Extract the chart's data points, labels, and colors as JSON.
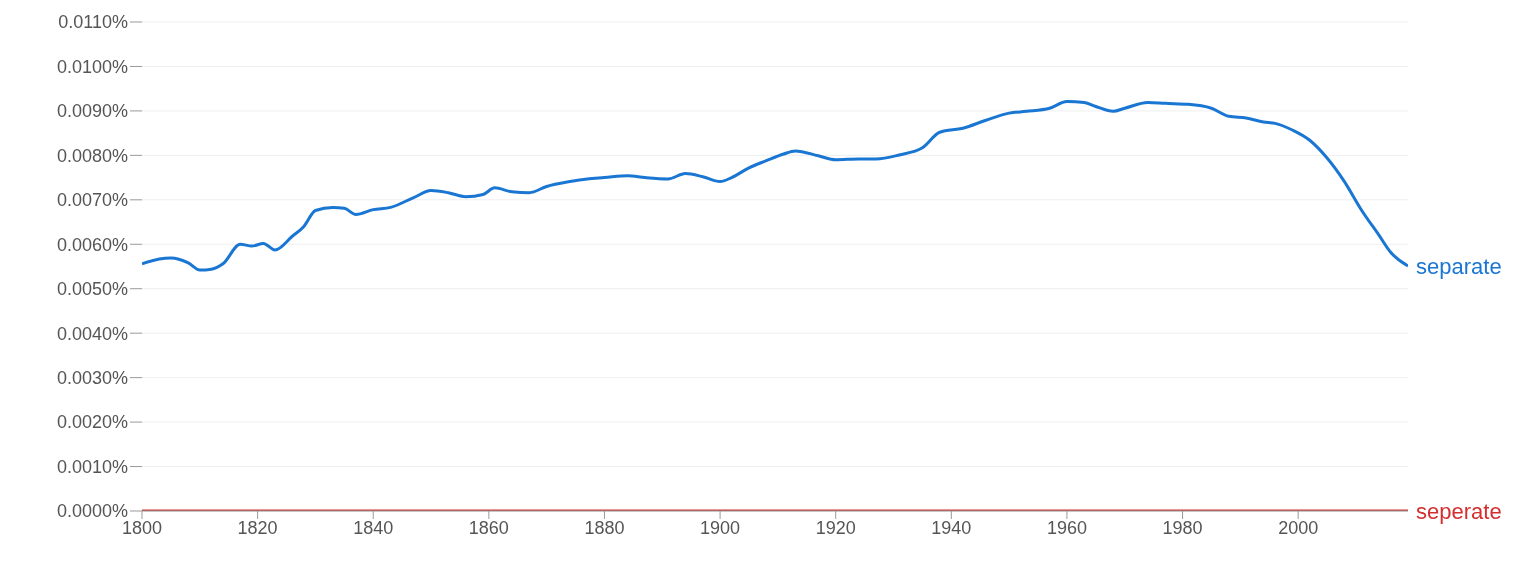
{
  "chart_data": {
    "type": "line",
    "xlim": [
      1800,
      2019
    ],
    "xticks": [
      1800,
      1820,
      1840,
      1860,
      1880,
      1900,
      1920,
      1940,
      1960,
      1980,
      2000
    ],
    "ylim": [
      0,
      0.011
    ],
    "yticks": [
      {
        "value": 0,
        "label": "0.0000%"
      },
      {
        "value": 0.001,
        "label": "0.0010%"
      },
      {
        "value": 0.002,
        "label": "0.0020%"
      },
      {
        "value": 0.003,
        "label": "0.0030%"
      },
      {
        "value": 0.004,
        "label": "0.0040%"
      },
      {
        "value": 0.005,
        "label": "0.0050%"
      },
      {
        "value": 0.006,
        "label": "0.0060%"
      },
      {
        "value": 0.007,
        "label": "0.0070%"
      },
      {
        "value": 0.008,
        "label": "0.0080%"
      },
      {
        "value": 0.009,
        "label": "0.0090%"
      },
      {
        "value": 0.01,
        "label": "0.0100%"
      },
      {
        "value": 0.011,
        "label": "0.0110%"
      }
    ],
    "grid": "y",
    "legend": false,
    "marker": "none",
    "line_style": "solid",
    "series": [
      {
        "name": "separate",
        "color": "#1976d2",
        "x": [
          1800,
          1803,
          1805,
          1808,
          1810,
          1812,
          1814,
          1817,
          1819,
          1821,
          1823,
          1826,
          1828,
          1830,
          1833,
          1835,
          1837,
          1840,
          1843,
          1847,
          1850,
          1853,
          1856,
          1859,
          1861,
          1864,
          1867,
          1870,
          1874,
          1877,
          1880,
          1884,
          1887,
          1891,
          1894,
          1897,
          1900,
          1902,
          1905,
          1908,
          1911,
          1913,
          1917,
          1920,
          1924,
          1927,
          1931,
          1935,
          1938,
          1942,
          1946,
          1950,
          1953,
          1957,
          1960,
          1963,
          1965,
          1968,
          1970,
          1974,
          1977,
          1981,
          1985,
          1988,
          1991,
          1994,
          1996,
          1999,
          2002,
          2005,
          2008,
          2011,
          2014,
          2016,
          2019
        ],
        "values": [
          0.00556,
          0.00567,
          0.00569,
          0.00558,
          0.00542,
          0.00544,
          0.00556,
          0.006,
          0.00596,
          0.00602,
          0.00587,
          0.00618,
          0.0064,
          0.00676,
          0.00683,
          0.00681,
          0.00667,
          0.00678,
          0.00683,
          0.00705,
          0.00721,
          0.00716,
          0.00707,
          0.00712,
          0.00727,
          0.00718,
          0.00716,
          0.0073,
          0.00741,
          0.00747,
          0.0075,
          0.00754,
          0.0075,
          0.00747,
          0.00759,
          0.00752,
          0.00741,
          0.0075,
          0.00772,
          0.00788,
          0.00803,
          0.0081,
          0.00799,
          0.0079,
          0.00792,
          0.00792,
          0.00801,
          0.00817,
          0.00852,
          0.00861,
          0.00879,
          0.00895,
          0.00899,
          0.00906,
          0.00921,
          0.00919,
          0.0091,
          0.00899,
          0.00906,
          0.00919,
          0.00917,
          0.00915,
          0.00906,
          0.00888,
          0.00884,
          0.00875,
          0.00872,
          0.00857,
          0.00834,
          0.00794,
          0.00741,
          0.00676,
          0.0062,
          0.00582,
          0.00551
        ]
      },
      {
        "name": "seperate",
        "color": "#d32f2f",
        "x": [
          1800,
          1815,
          1850,
          1900,
          1950,
          1980,
          2000,
          2019
        ],
        "values": [
          0,
          0,
          0,
          0,
          0,
          0,
          0,
          0
        ]
      }
    ]
  }
}
